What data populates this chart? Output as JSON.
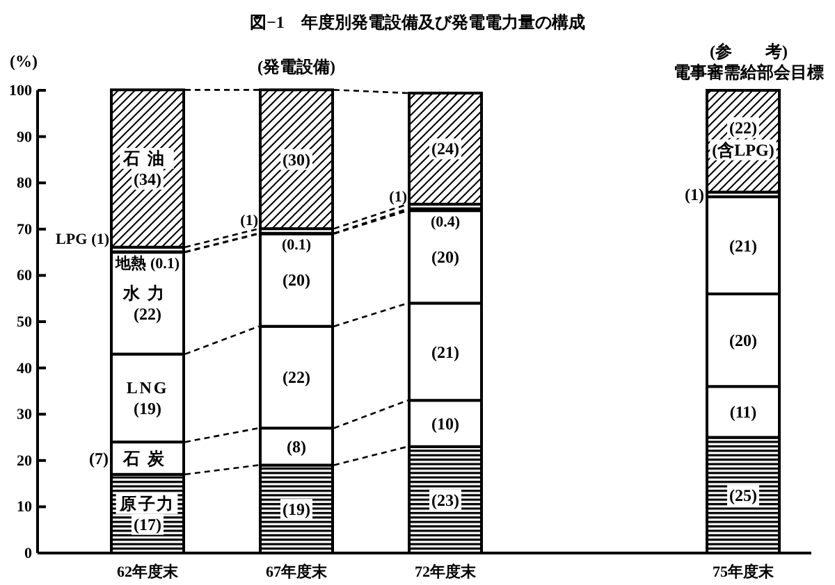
{
  "chart_data": {
    "type": "bar",
    "title": "図−1　年度別発電設備及び発電電力量の構成",
    "ylabel": "(%)",
    "categories": [
      "62年度末",
      "67年度末",
      "72年度末",
      null,
      "75年度末"
    ],
    "stacked": true,
    "ylim": [
      0,
      100
    ],
    "yticks": [
      0,
      10,
      20,
      30,
      40,
      50,
      60,
      70,
      80,
      90,
      100
    ],
    "series": [
      {
        "name": "原子力",
        "color": "#000000",
        "values": [
          17,
          19,
          23,
          null,
          25
        ],
        "value_labels": [
          "(17)",
          "(19)",
          "(23)",
          null,
          "(25)"
        ]
      },
      {
        "name": "石炭",
        "color": "#ffffff",
        "values": [
          7,
          8,
          10,
          null,
          11
        ],
        "value_labels": [
          "(7)",
          "(8)",
          "(10)",
          null,
          "(11)"
        ]
      },
      {
        "name": "LNG",
        "color": "#ffffff",
        "values": [
          19,
          22,
          21,
          null,
          20
        ],
        "value_labels": [
          "(19)",
          "(22)",
          "(21)",
          null,
          "(20)"
        ]
      },
      {
        "name": "水力",
        "color": "#ffffff",
        "values": [
          22,
          20,
          20,
          null,
          21
        ],
        "value_labels": [
          "(22)",
          "(20)",
          "(20)",
          null,
          "(21)"
        ]
      },
      {
        "name": "地熱",
        "color": "#ffffff",
        "values": [
          0.1,
          0.1,
          0.4,
          null,
          1
        ],
        "value_labels": [
          "(0.1)",
          "(0.1)",
          "(0.4)",
          null,
          "(1)"
        ]
      },
      {
        "name": "LPG",
        "color": "#ffffff",
        "values": [
          1,
          1,
          1,
          null,
          null
        ],
        "value_labels": [
          "(1)",
          "(1)",
          "(1)",
          null,
          null
        ]
      },
      {
        "name": "石油",
        "color": "#000000",
        "values": [
          34,
          30,
          24,
          null,
          22
        ],
        "value_labels": [
          "(34)",
          "(30)",
          "(24)",
          null,
          "(22)"
        ]
      }
    ],
    "annotations": [
      {
        "text": "(発電設備)",
        "x": "67年度末",
        "y": 100
      },
      "(参　　考)",
      "電事審需給部会目標",
      "(含LPG)"
    ]
  }
}
